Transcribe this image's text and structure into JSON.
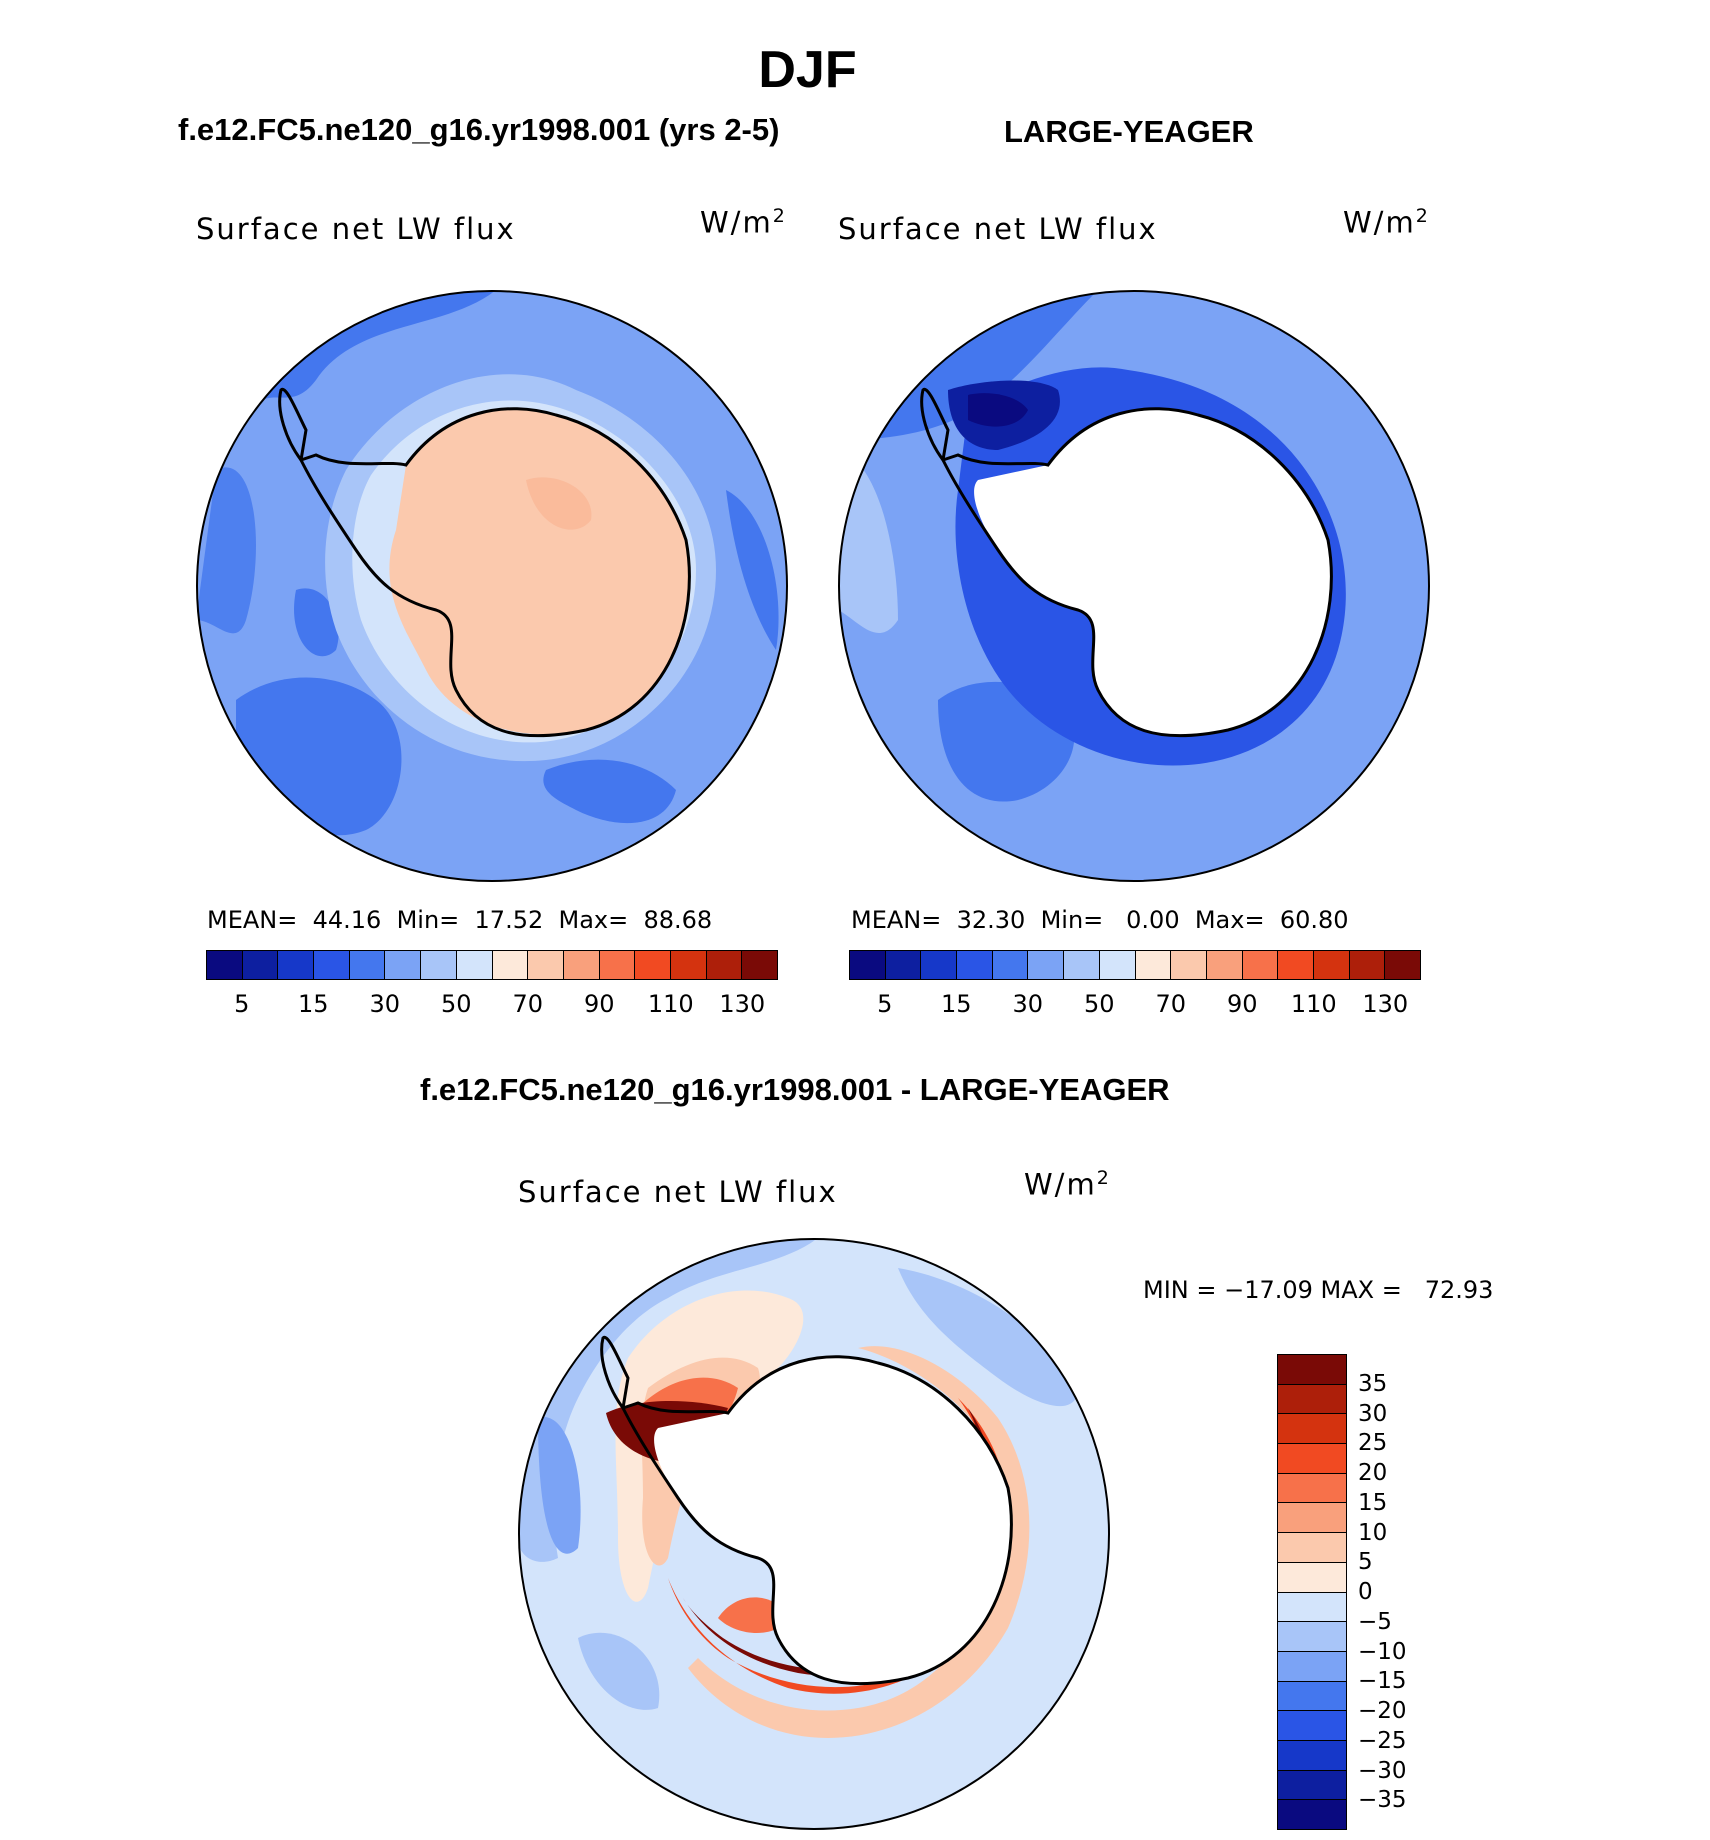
{
  "header": {
    "season": "DJF",
    "case_left": "f.e12.FC5.ne120_g16.yr1998.001 (yrs 2-5)",
    "case_right": "LARGE-YEAGER",
    "diff_title": "f.e12.FC5.ne120_g16.yr1998.001 - LARGE-YEAGER"
  },
  "panels": {
    "left": {
      "label": "Surface net LW flux",
      "units_base": "W/m",
      "units_exp": "2",
      "stats": "MEAN=  44.16  Min=  17.52  Max=  88.68"
    },
    "right": {
      "label": "Surface net LW flux",
      "units_base": "W/m",
      "units_exp": "2",
      "stats": "MEAN=  32.30  Min=   0.00  Max=  60.80"
    },
    "diff": {
      "label": "Surface net LW flux",
      "units_base": "W/m",
      "units_exp": "2",
      "stats": "MIN = −17.09 MAX =   72.93"
    }
  },
  "colorbar_abs": {
    "colors": [
      "#0a0a80",
      "#0d1fa0",
      "#1638c9",
      "#2a55e6",
      "#4477ee",
      "#7ba3f5",
      "#a8c5f8",
      "#d3e4fb",
      "#fde9da",
      "#fbc9ad",
      "#f9a07c",
      "#f7714a",
      "#f14a22",
      "#d4330f",
      "#ad1f0a",
      "#7a0a06"
    ],
    "ticks": [
      "5",
      "15",
      "30",
      "50",
      "70",
      "90",
      "110",
      "130"
    ]
  },
  "colorbar_diff": {
    "colors": [
      "#7a0a06",
      "#ad1f0a",
      "#d4330f",
      "#f14a22",
      "#f7714a",
      "#f9a07c",
      "#fbc9ad",
      "#fde9da",
      "#d3e4fb",
      "#a8c5f8",
      "#7ba3f5",
      "#4477ee",
      "#2a55e6",
      "#1638c9",
      "#0d1fa0",
      "#0a0a80"
    ],
    "ticks": [
      "35",
      "30",
      "25",
      "20",
      "15",
      "10",
      "5",
      "0",
      "−5",
      "−10",
      "−15",
      "−20",
      "−25",
      "−30",
      "−35"
    ]
  }
}
